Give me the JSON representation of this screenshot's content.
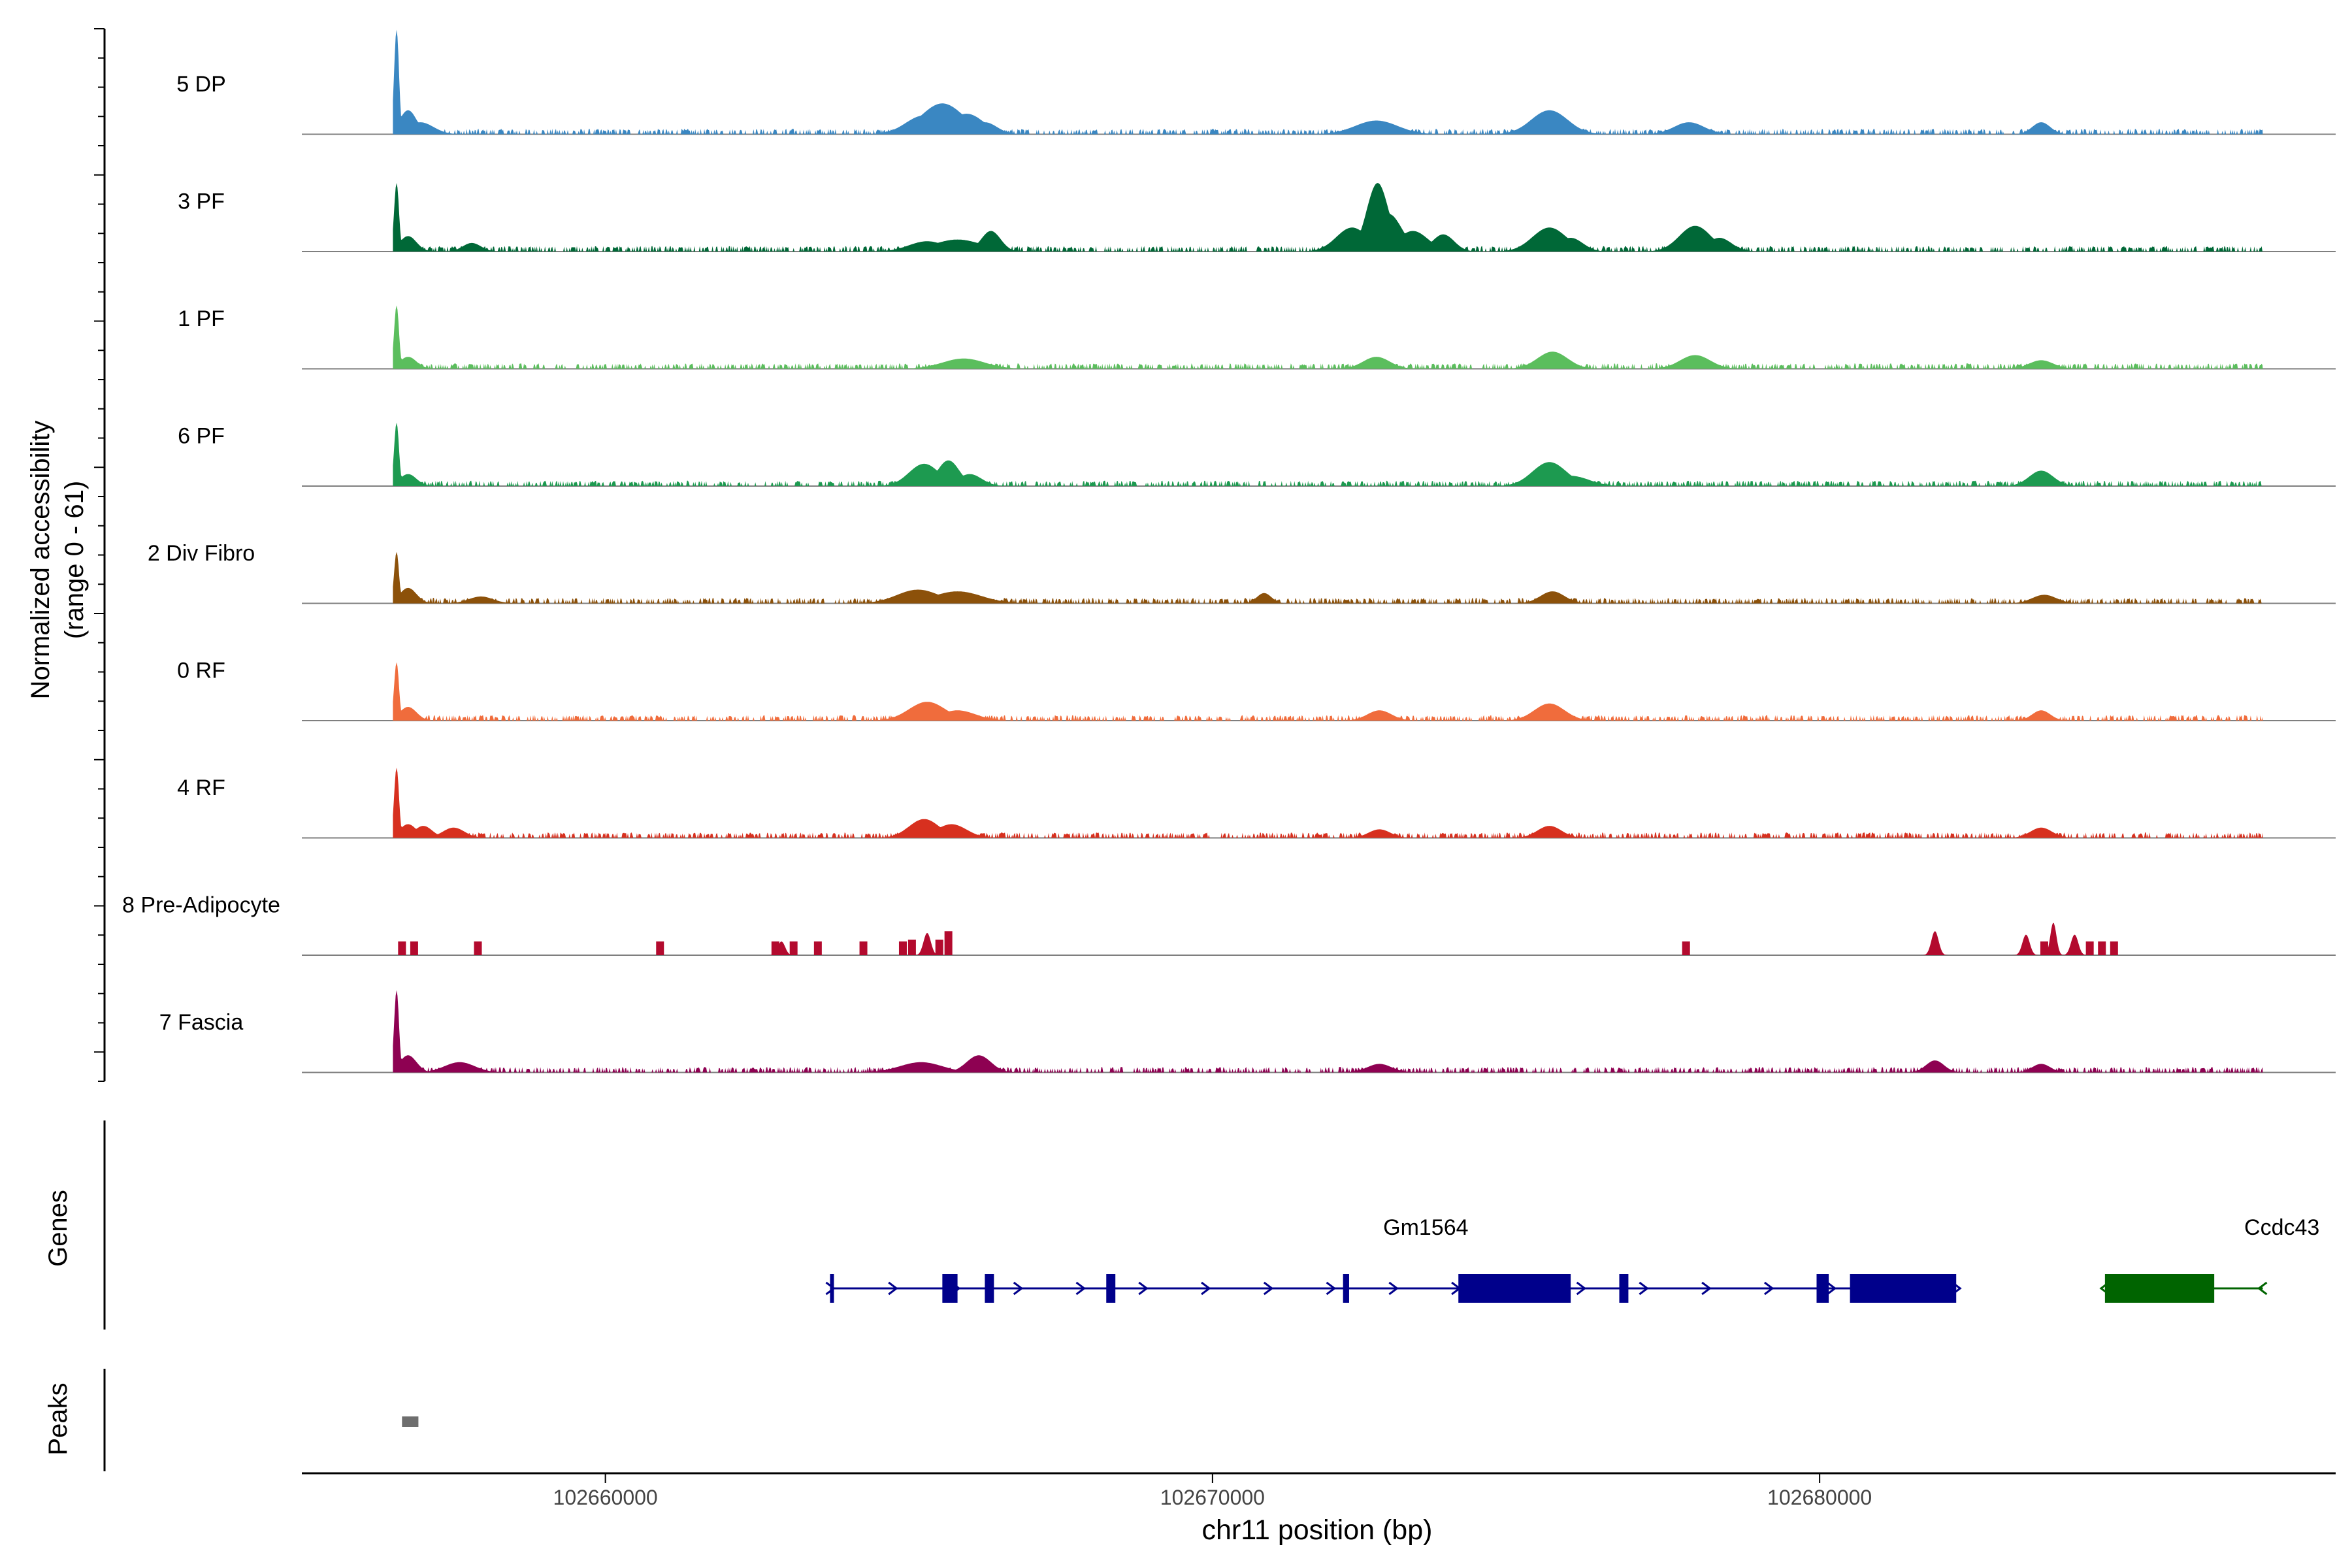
{
  "chart_data": {
    "type": "area",
    "title": "",
    "region": "chr11",
    "xlabel": "chr11 position (bp)",
    "ylabel_line1": "Normalized accessibility",
    "ylabel_line2": "(range 0 - 61)",
    "y_range": [
      0,
      61
    ],
    "x_range": [
      102655000,
      102688500
    ],
    "x_ticks": [
      102660000,
      102670000,
      102680000
    ],
    "x_tick_labels": [
      "102660000",
      "102670000",
      "102680000"
    ],
    "genes_label": "Genes",
    "peaks_label": "Peaks",
    "tracks": [
      {
        "name": "5 DP",
        "color": "#3A87C2",
        "peaks": [
          [
            102656560,
            61,
            40
          ],
          [
            102656750,
            14,
            140
          ],
          [
            102656950,
            7,
            220
          ],
          [
            102665250,
            11,
            300
          ],
          [
            102665550,
            18,
            350
          ],
          [
            102665950,
            12,
            280
          ],
          [
            102666250,
            7,
            200
          ],
          [
            102672700,
            8,
            350
          ],
          [
            102675550,
            14,
            300
          ],
          [
            102677850,
            7,
            250
          ],
          [
            102683650,
            7,
            150
          ]
        ]
      },
      {
        "name": "3 PF",
        "color": "#006837",
        "peaks": [
          [
            102656560,
            40,
            40
          ],
          [
            102656750,
            9,
            140
          ],
          [
            102657800,
            5,
            150
          ],
          [
            102665300,
            6,
            300
          ],
          [
            102665800,
            7,
            400
          ],
          [
            102666350,
            12,
            160
          ],
          [
            102672300,
            14,
            260
          ],
          [
            102672720,
            40,
            180
          ],
          [
            102672900,
            22,
            220
          ],
          [
            102673300,
            12,
            250
          ],
          [
            102673800,
            10,
            180
          ],
          [
            102675550,
            14,
            280
          ],
          [
            102675900,
            8,
            200
          ],
          [
            102677950,
            15,
            260
          ],
          [
            102678350,
            8,
            200
          ]
        ]
      },
      {
        "name": "1 PF",
        "color": "#5BBE5D",
        "peaks": [
          [
            102656560,
            37,
            40
          ],
          [
            102656750,
            7,
            140
          ],
          [
            102665900,
            6,
            350
          ],
          [
            102672700,
            7,
            220
          ],
          [
            102675600,
            10,
            250
          ],
          [
            102677950,
            8,
            250
          ],
          [
            102683650,
            5,
            200
          ]
        ]
      },
      {
        "name": "6 PF",
        "color": "#1D9A50",
        "peaks": [
          [
            102656560,
            37,
            40
          ],
          [
            102656750,
            7,
            140
          ],
          [
            102665250,
            13,
            250
          ],
          [
            102665650,
            15,
            180
          ],
          [
            102666000,
            7,
            200
          ],
          [
            102675550,
            14,
            280
          ],
          [
            102675900,
            6,
            300
          ],
          [
            102683650,
            9,
            200
          ]
        ]
      },
      {
        "name": "2 Div Fibro",
        "color": "#8C510A",
        "peaks": [
          [
            102656560,
            30,
            40
          ],
          [
            102656750,
            9,
            140
          ],
          [
            102657950,
            4,
            200
          ],
          [
            102665150,
            8,
            350
          ],
          [
            102665800,
            7,
            400
          ],
          [
            102670850,
            6,
            120
          ],
          [
            102675600,
            7,
            200
          ],
          [
            102683700,
            5,
            200
          ]
        ]
      },
      {
        "name": "0 RF",
        "color": "#F06C3C",
        "peaks": [
          [
            102656560,
            34,
            40
          ],
          [
            102656750,
            8,
            140
          ],
          [
            102665300,
            11,
            300
          ],
          [
            102665800,
            6,
            300
          ],
          [
            102672750,
            6,
            200
          ],
          [
            102675550,
            10,
            250
          ],
          [
            102683650,
            6,
            150
          ]
        ]
      },
      {
        "name": "4 RF",
        "color": "#D7301F",
        "peaks": [
          [
            102656560,
            41,
            40
          ],
          [
            102656750,
            8,
            140
          ],
          [
            102657000,
            7,
            150
          ],
          [
            102657500,
            6,
            180
          ],
          [
            102665250,
            11,
            250
          ],
          [
            102665700,
            8,
            250
          ],
          [
            102672750,
            5,
            180
          ],
          [
            102675550,
            7,
            200
          ],
          [
            102683650,
            6,
            180
          ]
        ]
      },
      {
        "name": "8 Pre-Adipocyte",
        "color": "#B30A2E",
        "peaks": [
          [
            102662900,
            8,
            60
          ],
          [
            102665300,
            13,
            60
          ],
          [
            102681900,
            14,
            60
          ],
          [
            102683400,
            12,
            60
          ],
          [
            102683850,
            19,
            50
          ],
          [
            102684200,
            12,
            60
          ]
        ],
        "blocks": [
          [
            102656650,
            8
          ],
          [
            102656850,
            8
          ],
          [
            102657900,
            8
          ],
          [
            102660900,
            8
          ],
          [
            102662800,
            8
          ],
          [
            102663100,
            8
          ],
          [
            102663500,
            8
          ],
          [
            102664250,
            8
          ],
          [
            102664900,
            8
          ],
          [
            102665050,
            9
          ],
          [
            102665500,
            9
          ],
          [
            102665650,
            14
          ],
          [
            102677800,
            8
          ],
          [
            102683700,
            8
          ],
          [
            102684450,
            8
          ],
          [
            102684650,
            8
          ],
          [
            102684850,
            8
          ]
        ]
      },
      {
        "name": "7 Fascia",
        "color": "#8E0152",
        "peaks": [
          [
            102656560,
            48,
            40
          ],
          [
            102656750,
            10,
            140
          ],
          [
            102657600,
            6,
            250
          ],
          [
            102665200,
            6,
            350
          ],
          [
            102666150,
            10,
            200
          ],
          [
            102672750,
            5,
            200
          ],
          [
            102681900,
            7,
            150
          ],
          [
            102683650,
            5,
            150
          ]
        ]
      }
    ],
    "genes": [
      {
        "name": "Gm1564",
        "strand": "+",
        "start": 102663700,
        "end": 102682250,
        "color": "#00008B",
        "exons": [
          [
            102663700,
            102663750
          ],
          [
            102665550,
            102665800
          ],
          [
            102666250,
            102666400
          ],
          [
            102668250,
            102668400
          ],
          [
            102672150,
            102672250
          ],
          [
            102674050,
            102675900
          ],
          [
            102676700,
            102676850
          ],
          [
            102679950,
            102680150
          ],
          [
            102680500,
            102682250
          ]
        ]
      },
      {
        "name": "Ccdc43",
        "strand": "-",
        "start": 102684700,
        "end": 102687300,
        "color": "#006400",
        "exons": [
          [
            102684700,
            102686500
          ]
        ]
      }
    ],
    "peak_regions": [
      [
        102656650,
        102656920
      ]
    ]
  }
}
